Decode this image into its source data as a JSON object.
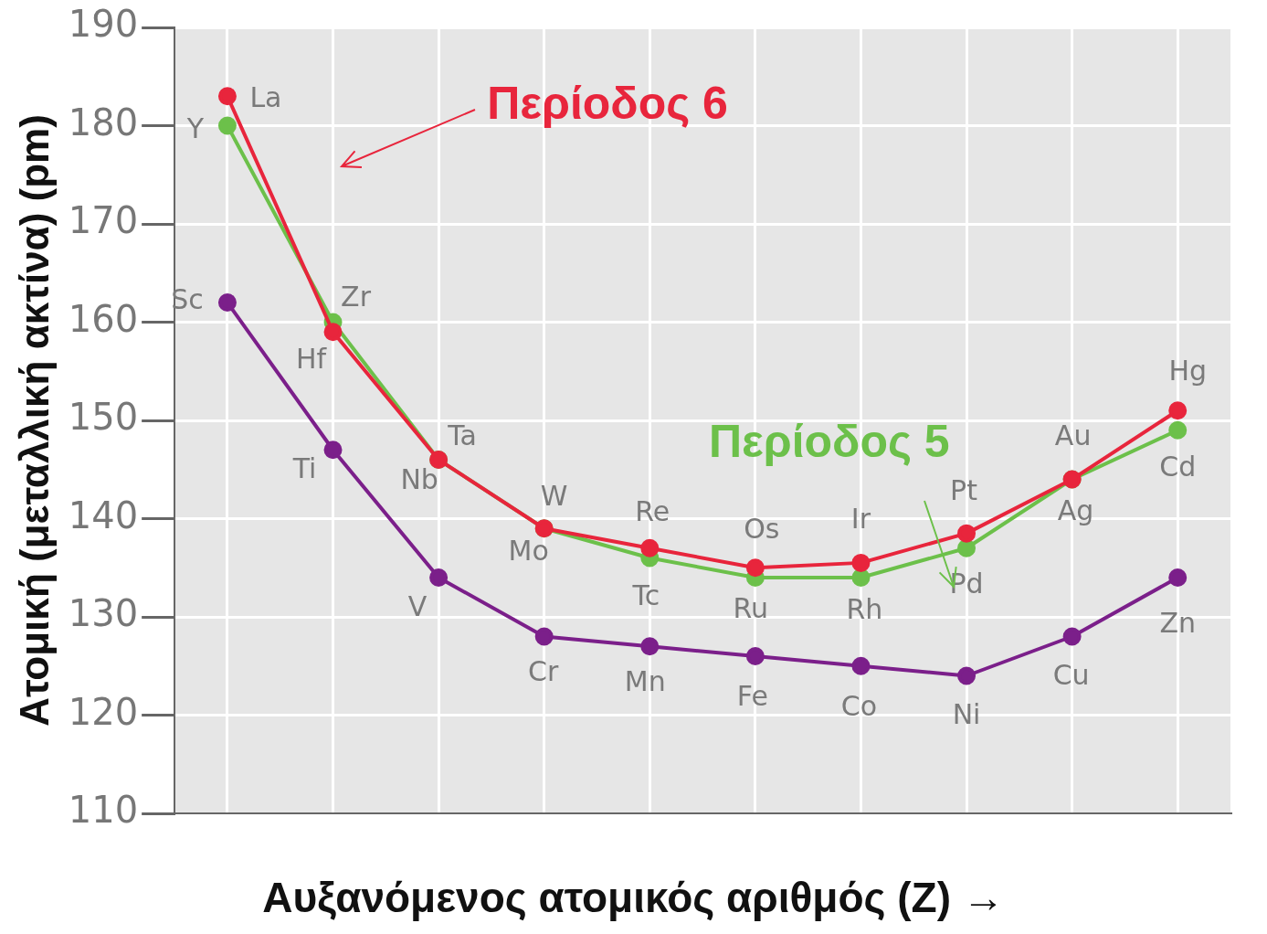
{
  "chart_data": {
    "type": "line",
    "xlabel": "Αυξανόμενος ατομικός αριθμός (Z) →",
    "ylabel": "Ατομική (μεταλλική ακτίνα) (pm)",
    "categories": [
      null,
      null,
      null,
      null,
      null,
      null,
      null,
      null,
      null,
      null
    ],
    "ylim": [
      110,
      190
    ],
    "yticks": [
      110,
      120,
      130,
      140,
      150,
      160,
      170,
      180,
      190
    ],
    "grid": true,
    "legend": false,
    "marker": "circle",
    "line_style": "solid",
    "series": [
      {
        "color": "#7b1f8a",
        "values": [
          162,
          147,
          134,
          128,
          127,
          126,
          125,
          124,
          128,
          134
        ],
        "value_labels": [
          "Sc",
          "Ti",
          "V",
          "Cr",
          "Mn",
          "Fe",
          "Co",
          "Ni",
          "Cu",
          "Zn"
        ]
      },
      {
        "name": "Περίοδος 5",
        "color": "#6cc04a",
        "values": [
          180,
          160,
          146,
          139,
          136,
          134,
          134,
          137,
          144,
          149
        ],
        "value_labels": [
          "Y",
          "Zr",
          "Nb",
          "Mo",
          "Tc",
          "Ru",
          "Rh",
          "Pd",
          "Ag",
          "Cd"
        ]
      },
      {
        "name": "Περίοδος 6",
        "color": "#e8253c",
        "values": [
          183,
          159,
          146,
          139,
          137,
          135,
          135.5,
          138.5,
          144,
          151
        ],
        "value_labels": [
          "La",
          "Hf",
          "Ta",
          "W",
          "Re",
          "Os",
          "Ir",
          "Pt",
          "Au",
          "Hg"
        ]
      }
    ]
  }
}
